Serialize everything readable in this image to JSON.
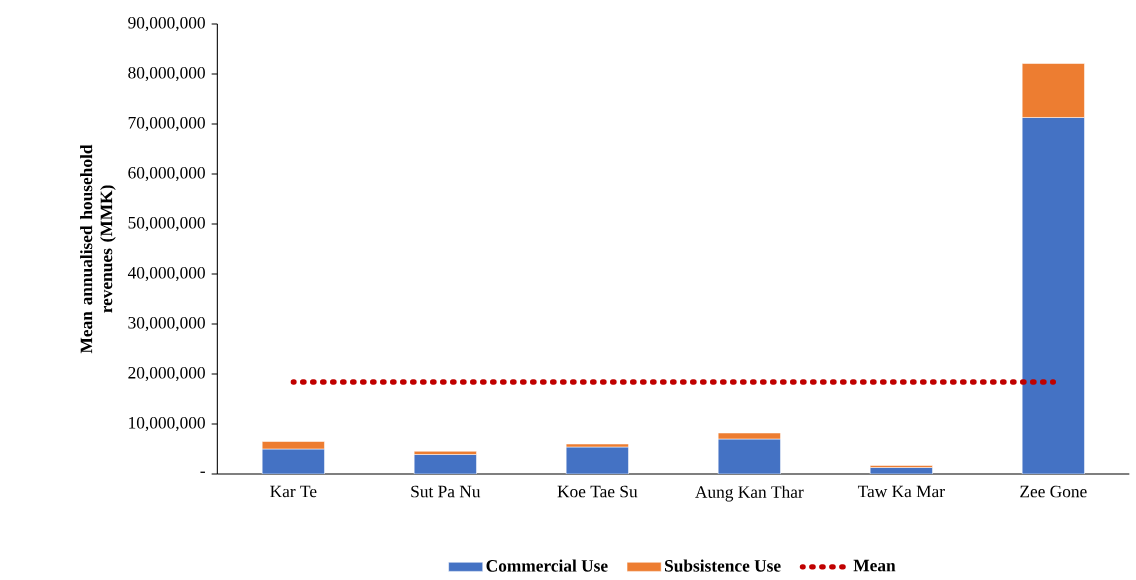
{
  "chart_data": {
    "type": "bar",
    "stacked": true,
    "ylabel": "Mean annualised household revenues (MMK)",
    "categories": [
      "Kar Te",
      "Sut Pa Nu",
      "Koe Tae Su",
      "Aung Kan Thar",
      "Taw Ka Mar",
      "Zee Gone"
    ],
    "series": [
      {
        "name": "Commercial Use",
        "color": "#4472c4",
        "values": [
          5000000,
          3900000,
          5400000,
          7000000,
          1300000,
          71300000
        ]
      },
      {
        "name": "Subsistence Use",
        "color": "#ed7d31",
        "values": [
          1500000,
          650000,
          600000,
          1200000,
          400000,
          10800000
        ]
      },
      {
        "name": "Mean",
        "type": "line",
        "color": "#c00000",
        "line_style": "dotted",
        "marker": "none",
        "values": [
          18400000,
          18400000,
          18400000,
          18400000,
          18400000,
          18400000
        ]
      }
    ],
    "ylim": [
      0,
      90000000
    ],
    "yticks": [
      {
        "value": 0,
        "label": "-"
      },
      {
        "value": 10000000,
        "label": "10,000,000"
      },
      {
        "value": 20000000,
        "label": "20,000,000"
      },
      {
        "value": 30000000,
        "label": "30,000,000"
      },
      {
        "value": 40000000,
        "label": "40,000,000"
      },
      {
        "value": 50000000,
        "label": "50,000,000"
      },
      {
        "value": 60000000,
        "label": "60,000,000"
      },
      {
        "value": 70000000,
        "label": "70,000,000"
      },
      {
        "value": 80000000,
        "label": "80,000,000"
      },
      {
        "value": 90000000,
        "label": "90,000,000"
      }
    ],
    "legend": "bottom"
  }
}
